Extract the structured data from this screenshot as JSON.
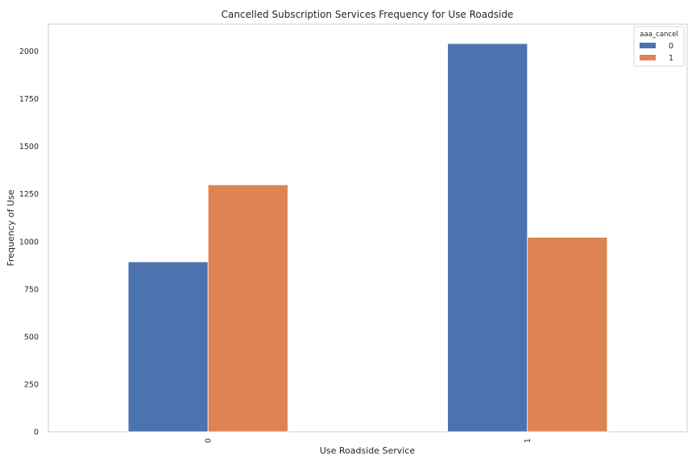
{
  "chart_data": {
    "type": "bar",
    "title": "Cancelled Subscription Services Frequency for Use Roadside",
    "xlabel": "Use Roadside Service",
    "ylabel": "Frequency of Use",
    "categories": [
      "0",
      "1"
    ],
    "series": [
      {
        "name": "0",
        "values": [
          893,
          2040
        ],
        "color": "#4c72b0"
      },
      {
        "name": "1",
        "values": [
          1298,
          1022
        ],
        "color": "#dd8452"
      }
    ],
    "ylim": [
      0,
      2142
    ],
    "yticks": [
      0,
      250,
      500,
      750,
      1000,
      1250,
      1500,
      1750,
      2000
    ],
    "grid": false,
    "legend": {
      "title": "aaa_cancel",
      "placement": "top-right"
    }
  }
}
